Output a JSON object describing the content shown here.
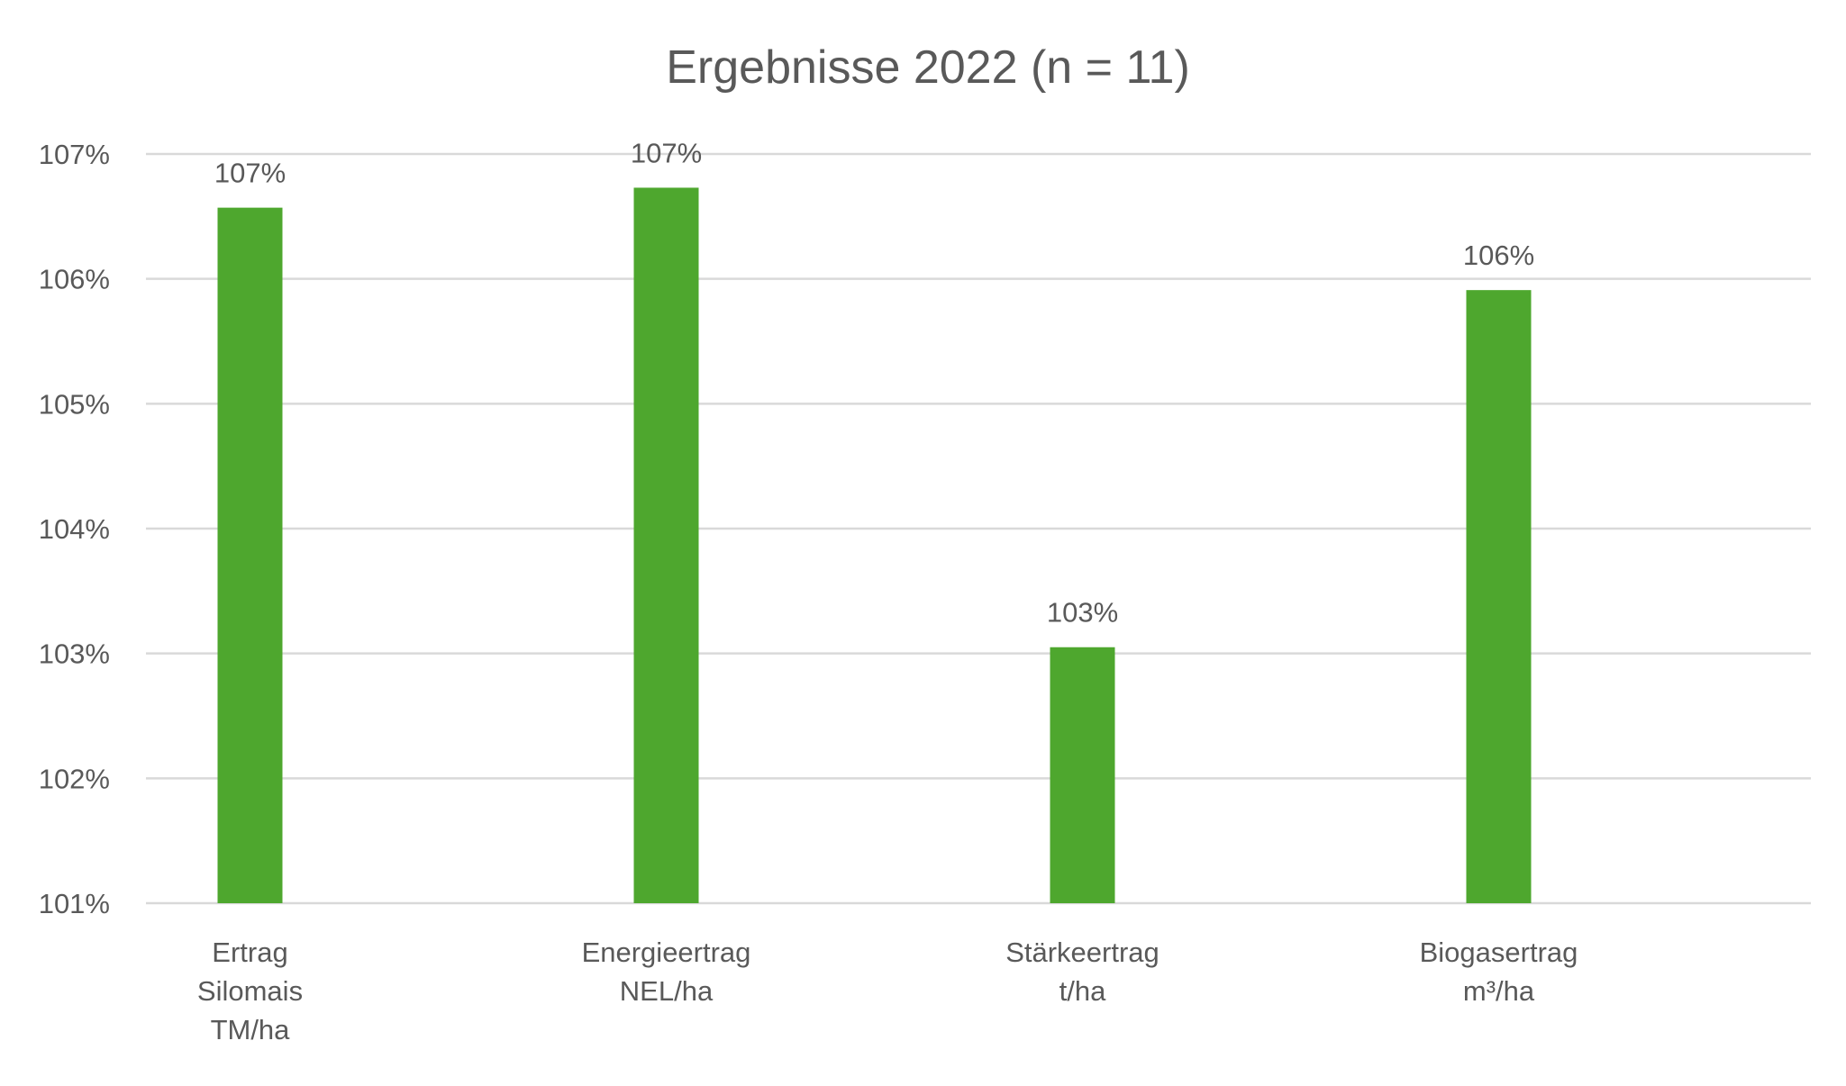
{
  "chart_data": {
    "type": "bar",
    "title": "Ergebnisse 2022 (n = 11)",
    "xlabel": "",
    "ylabel": "",
    "categories": [
      [
        "Ertrag",
        "Silomais",
        "TM/ha"
      ],
      [
        "Energieertrag",
        "NEL/ha"
      ],
      [
        "Stärkeertrag",
        "t/ha"
      ],
      [
        "Biogasertrag",
        "m³/ha"
      ]
    ],
    "values": [
      106.57,
      106.73,
      103.05,
      105.91
    ],
    "data_labels": [
      "107%",
      "107%",
      "103%",
      "106%"
    ],
    "ylim": [
      101,
      107
    ],
    "yticks": [
      101,
      102,
      103,
      104,
      105,
      106,
      107
    ],
    "ytick_labels": [
      "101%",
      "102%",
      "103%",
      "104%",
      "105%",
      "106%",
      "107%"
    ],
    "grid": true,
    "legend": "none",
    "colors": {
      "bar": "#4ea72e",
      "grid": "#d9d9d9",
      "text": "#595959"
    }
  }
}
